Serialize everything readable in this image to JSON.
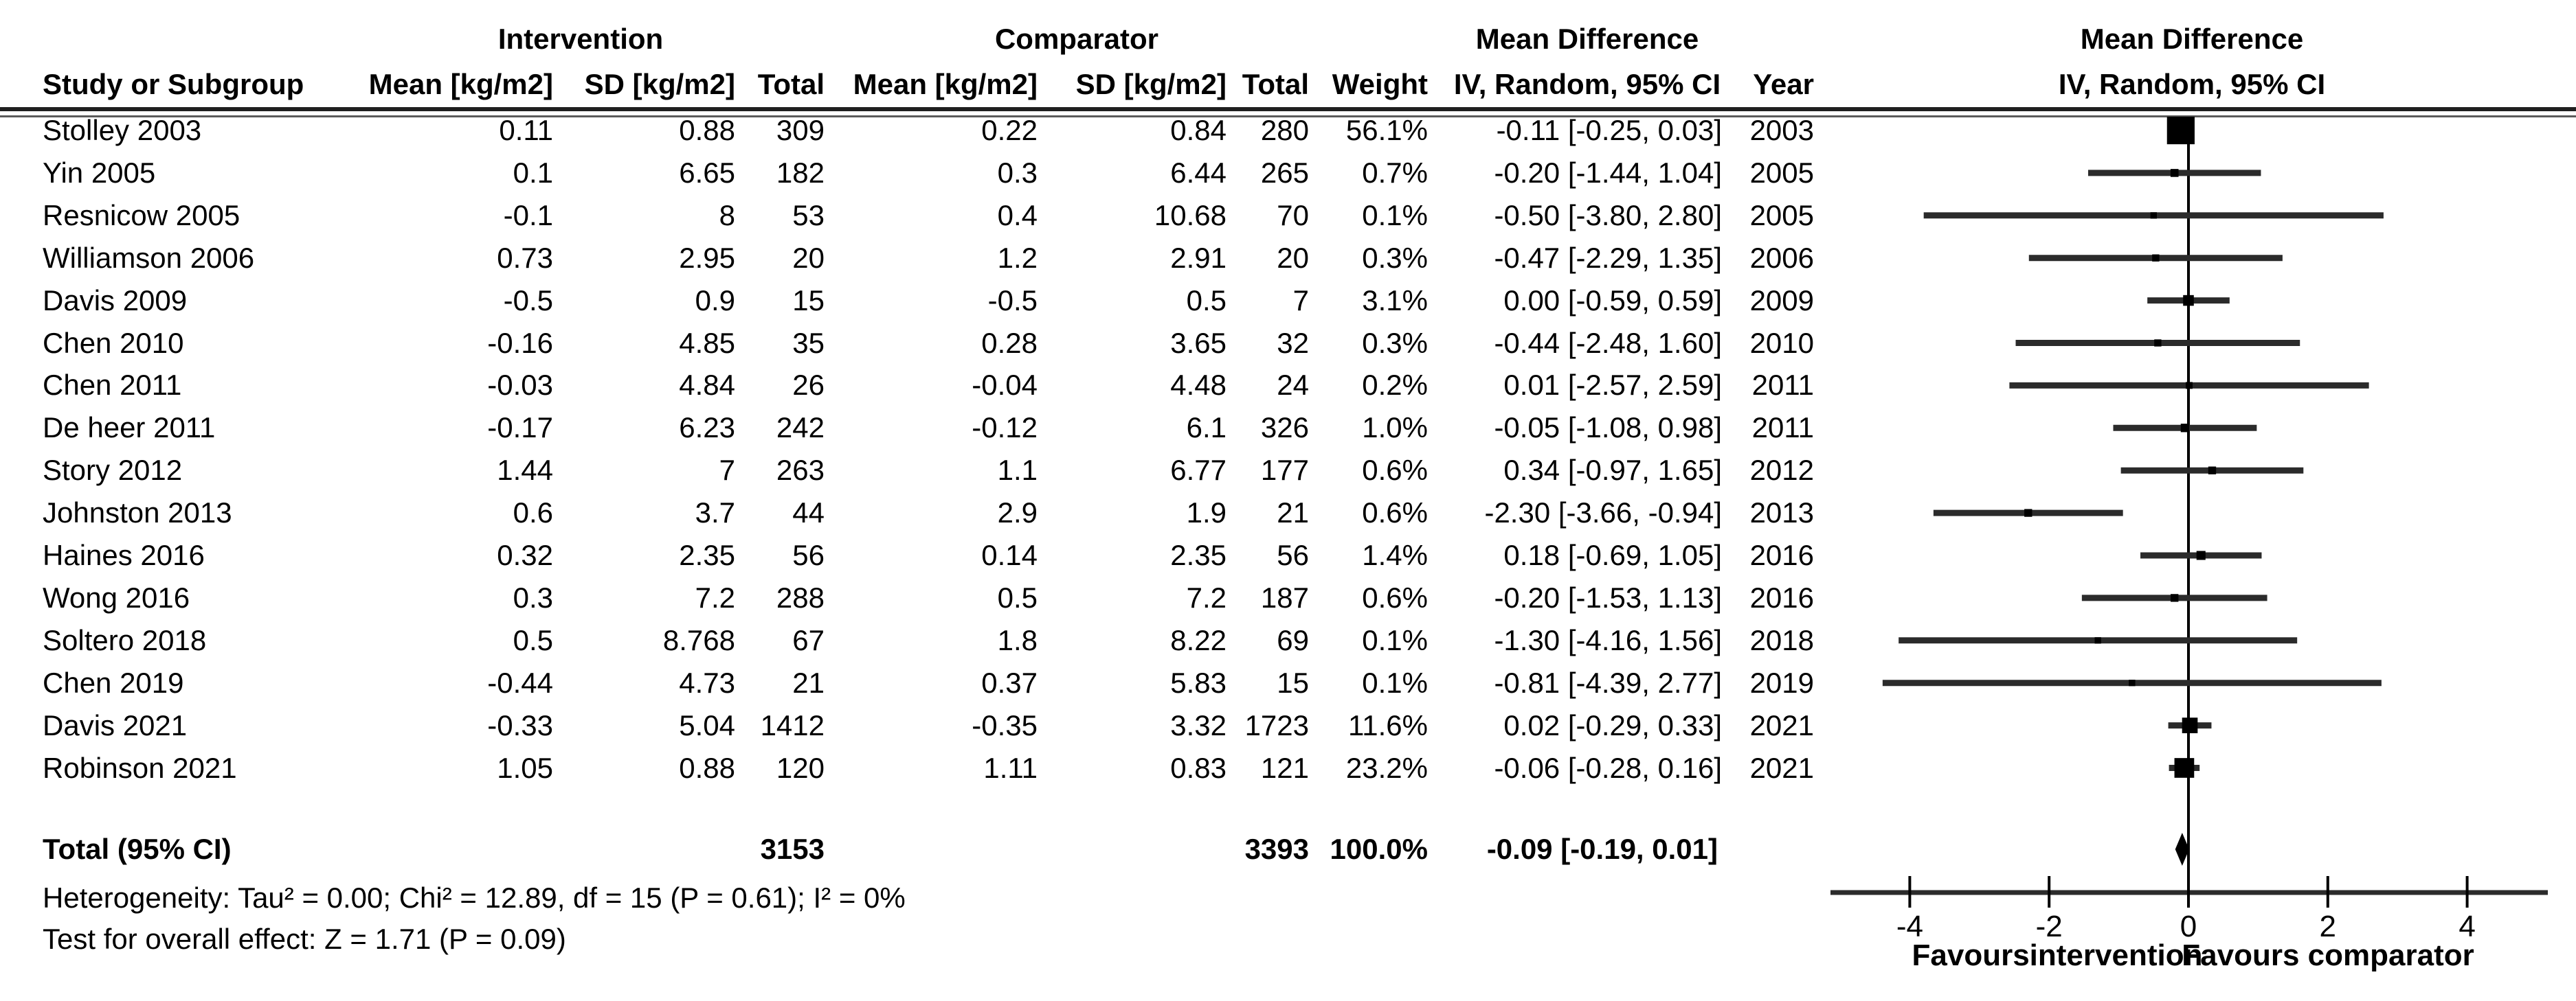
{
  "header": {
    "study_col": "Study or Subgroup",
    "group_intervention": "Intervention",
    "group_comparator": "Comparator",
    "mean_label": "Mean [kg/m2]",
    "sd_label": "SD [kg/m2]",
    "total_label": "Total",
    "weight_label": "Weight",
    "md_label": "Mean Difference",
    "method_label": "IV, Random, 95% CI",
    "year_label": "Year",
    "plot_md_label": "Mean Difference",
    "plot_method_label": "IV, Random, 95% CI"
  },
  "chart_data": {
    "type": "forest",
    "effect_measure": "Mean Difference",
    "model": "IV, Random, 95% CI",
    "xlim": [
      -4,
      4
    ],
    "ticks": [
      -4,
      -2,
      0,
      2,
      4
    ],
    "tick_labels": [
      "-4",
      "-2",
      "0",
      "2",
      "4"
    ],
    "favours_left": "Favoursintervention",
    "favours_right": "Favours comparator",
    "studies": [
      {
        "name": "Stolley 2003",
        "i_mean": "0.11",
        "i_sd": "0.88",
        "i_total": "309",
        "c_mean": "0.22",
        "c_sd": "0.84",
        "c_total": "280",
        "weight": "56.1%",
        "weight_pct": 56.1,
        "ci_text": "-0.11 [-0.25, 0.03]",
        "year": "2003",
        "md": -0.11,
        "lo": -0.25,
        "hi": 0.03
      },
      {
        "name": "Yin 2005",
        "i_mean": "0.1",
        "i_sd": "6.65",
        "i_total": "182",
        "c_mean": "0.3",
        "c_sd": "6.44",
        "c_total": "265",
        "weight": "0.7%",
        "weight_pct": 0.7,
        "ci_text": "-0.20 [-1.44, 1.04]",
        "year": "2005",
        "md": -0.2,
        "lo": -1.44,
        "hi": 1.04
      },
      {
        "name": "Resnicow 2005",
        "i_mean": "-0.1",
        "i_sd": "8",
        "i_total": "53",
        "c_mean": "0.4",
        "c_sd": "10.68",
        "c_total": "70",
        "weight": "0.1%",
        "weight_pct": 0.1,
        "ci_text": "-0.50 [-3.80, 2.80]",
        "year": "2005",
        "md": -0.5,
        "lo": -3.8,
        "hi": 2.8
      },
      {
        "name": "Williamson 2006",
        "i_mean": "0.73",
        "i_sd": "2.95",
        "i_total": "20",
        "c_mean": "1.2",
        "c_sd": "2.91",
        "c_total": "20",
        "weight": "0.3%",
        "weight_pct": 0.3,
        "ci_text": "-0.47 [-2.29, 1.35]",
        "year": "2006",
        "md": -0.47,
        "lo": -2.29,
        "hi": 1.35
      },
      {
        "name": "Davis 2009",
        "i_mean": "-0.5",
        "i_sd": "0.9",
        "i_total": "15",
        "c_mean": "-0.5",
        "c_sd": "0.5",
        "c_total": "7",
        "weight": "3.1%",
        "weight_pct": 3.1,
        "ci_text": "0.00 [-0.59, 0.59]",
        "year": "2009",
        "md": 0.0,
        "lo": -0.59,
        "hi": 0.59
      },
      {
        "name": "Chen 2010",
        "i_mean": "-0.16",
        "i_sd": "4.85",
        "i_total": "35",
        "c_mean": "0.28",
        "c_sd": "3.65",
        "c_total": "32",
        "weight": "0.3%",
        "weight_pct": 0.3,
        "ci_text": "-0.44 [-2.48, 1.60]",
        "year": "2010",
        "md": -0.44,
        "lo": -2.48,
        "hi": 1.6
      },
      {
        "name": "Chen 2011",
        "i_mean": "-0.03",
        "i_sd": "4.84",
        "i_total": "26",
        "c_mean": "-0.04",
        "c_sd": "4.48",
        "c_total": "24",
        "weight": "0.2%",
        "weight_pct": 0.2,
        "ci_text": "0.01 [-2.57, 2.59]",
        "year": "2011",
        "md": 0.01,
        "lo": -2.57,
        "hi": 2.59
      },
      {
        "name": "De heer 2011",
        "i_mean": "-0.17",
        "i_sd": "6.23",
        "i_total": "242",
        "c_mean": "-0.12",
        "c_sd": "6.1",
        "c_total": "326",
        "weight": "1.0%",
        "weight_pct": 1.0,
        "ci_text": "-0.05 [-1.08, 0.98]",
        "year": "2011",
        "md": -0.05,
        "lo": -1.08,
        "hi": 0.98
      },
      {
        "name": "Story 2012",
        "i_mean": "1.44",
        "i_sd": "7",
        "i_total": "263",
        "c_mean": "1.1",
        "c_sd": "6.77",
        "c_total": "177",
        "weight": "0.6%",
        "weight_pct": 0.6,
        "ci_text": "0.34 [-0.97, 1.65]",
        "year": "2012",
        "md": 0.34,
        "lo": -0.97,
        "hi": 1.65
      },
      {
        "name": "Johnston 2013",
        "i_mean": "0.6",
        "i_sd": "3.7",
        "i_total": "44",
        "c_mean": "2.9",
        "c_sd": "1.9",
        "c_total": "21",
        "weight": "0.6%",
        "weight_pct": 0.6,
        "ci_text": "-2.30 [-3.66, -0.94]",
        "year": "2013",
        "md": -2.3,
        "lo": -3.66,
        "hi": -0.94
      },
      {
        "name": "Haines 2016",
        "i_mean": "0.32",
        "i_sd": "2.35",
        "i_total": "56",
        "c_mean": "0.14",
        "c_sd": "2.35",
        "c_total": "56",
        "weight": "1.4%",
        "weight_pct": 1.4,
        "ci_text": "0.18 [-0.69, 1.05]",
        "year": "2016",
        "md": 0.18,
        "lo": -0.69,
        "hi": 1.05
      },
      {
        "name": "Wong 2016",
        "i_mean": "0.3",
        "i_sd": "7.2",
        "i_total": "288",
        "c_mean": "0.5",
        "c_sd": "7.2",
        "c_total": "187",
        "weight": "0.6%",
        "weight_pct": 0.6,
        "ci_text": "-0.20 [-1.53, 1.13]",
        "year": "2016",
        "md": -0.2,
        "lo": -1.53,
        "hi": 1.13
      },
      {
        "name": "Soltero 2018",
        "i_mean": "0.5",
        "i_sd": "8.768",
        "i_total": "67",
        "c_mean": "1.8",
        "c_sd": "8.22",
        "c_total": "69",
        "weight": "0.1%",
        "weight_pct": 0.1,
        "ci_text": "-1.30 [-4.16, 1.56]",
        "year": "2018",
        "md": -1.3,
        "lo": -4.16,
        "hi": 1.56
      },
      {
        "name": "Chen 2019",
        "i_mean": "-0.44",
        "i_sd": "4.73",
        "i_total": "21",
        "c_mean": "0.37",
        "c_sd": "5.83",
        "c_total": "15",
        "weight": "0.1%",
        "weight_pct": 0.1,
        "ci_text": "-0.81 [-4.39, 2.77]",
        "year": "2019",
        "md": -0.81,
        "lo": -4.39,
        "hi": 2.77
      },
      {
        "name": "Davis 2021",
        "i_mean": "-0.33",
        "i_sd": "5.04",
        "i_total": "1412",
        "c_mean": "-0.35",
        "c_sd": "3.32",
        "c_total": "1723",
        "weight": "11.6%",
        "weight_pct": 11.6,
        "ci_text": "0.02 [-0.29, 0.33]",
        "year": "2021",
        "md": 0.02,
        "lo": -0.29,
        "hi": 0.33
      },
      {
        "name": "Robinson 2021",
        "i_mean": "1.05",
        "i_sd": "0.88",
        "i_total": "120",
        "c_mean": "1.11",
        "c_sd": "0.83",
        "c_total": "121",
        "weight": "23.2%",
        "weight_pct": 23.2,
        "ci_text": "-0.06 [-0.28, 0.16]",
        "year": "2021",
        "md": -0.06,
        "lo": -0.28,
        "hi": 0.16
      }
    ],
    "total": {
      "label": "Total (95% CI)",
      "i_total": "3153",
      "c_total": "3393",
      "weight": "100.0%",
      "ci_text": "-0.09 [-0.19, 0.01]",
      "md": -0.09,
      "lo": -0.19,
      "hi": 0.01
    }
  },
  "footnotes": {
    "heterogeneity": "Heterogeneity: Tau² = 0.00; Chi² = 12.89, df = 15 (P = 0.61); I² = 0%",
    "overall_effect": "Test for overall effect: Z = 1.71 (P = 0.09)"
  }
}
